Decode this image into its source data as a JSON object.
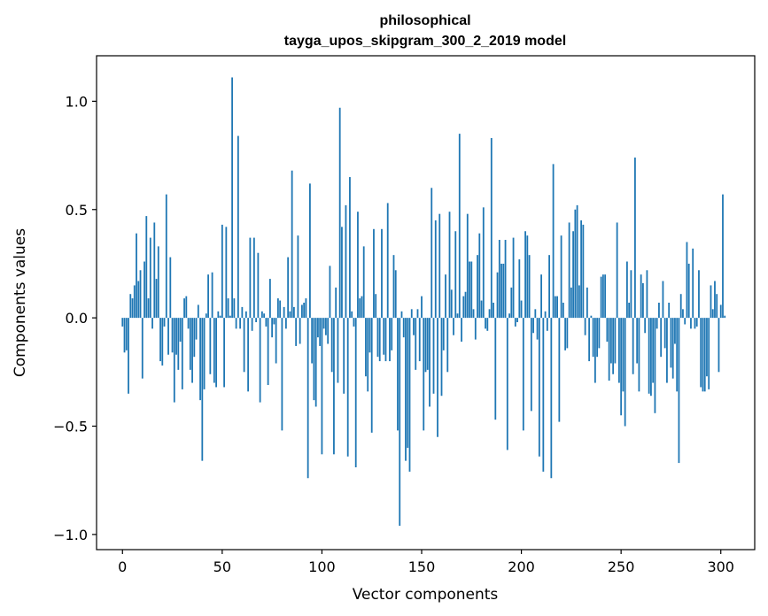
{
  "chart_data": {
    "type": "bar",
    "title_line1": "philosophical",
    "title_line2": "tayga_upos_skipgram_300_2_2019 model",
    "xlabel": "Vector components",
    "ylabel": "Components values",
    "xlim": [
      -13,
      317
    ],
    "ylim": [
      -1.07,
      1.21
    ],
    "xticks": [
      0,
      50,
      100,
      150,
      200,
      250,
      300
    ],
    "yticks": [
      -1.0,
      -0.5,
      0.0,
      0.5,
      1.0
    ],
    "ytick_labels": [
      "−1.0",
      "−0.5",
      "0.0",
      "0.5",
      "1.0"
    ],
    "bar_color": "#1f77b4",
    "values": [
      -0.04,
      -0.16,
      -0.15,
      -0.35,
      0.11,
      0.09,
      0.15,
      0.39,
      0.17,
      0.22,
      -0.28,
      0.26,
      0.47,
      0.09,
      0.37,
      -0.05,
      0.44,
      0.18,
      0.33,
      -0.2,
      -0.22,
      -0.04,
      0.57,
      -0.17,
      0.28,
      -0.16,
      -0.39,
      -0.17,
      -0.24,
      -0.11,
      -0.33,
      0.09,
      0.1,
      -0.05,
      -0.24,
      -0.3,
      -0.18,
      -0.1,
      0.06,
      -0.38,
      -0.66,
      -0.33,
      0.02,
      0.2,
      -0.26,
      0.21,
      -0.3,
      -0.32,
      0.03,
      0.01,
      0.43,
      -0.32,
      0.42,
      0.09,
      0.01,
      1.11,
      0.09,
      -0.05,
      0.84,
      -0.05,
      0.05,
      -0.25,
      0.03,
      -0.34,
      0.37,
      -0.06,
      0.37,
      -0.02,
      0.3,
      -0.39,
      0.03,
      0.02,
      -0.04,
      -0.31,
      0.18,
      -0.09,
      -0.03,
      -0.21,
      0.09,
      0.08,
      -0.52,
      0.05,
      -0.05,
      0.28,
      0.03,
      0.68,
      0.05,
      -0.13,
      0.38,
      -0.12,
      0.06,
      0.07,
      0.09,
      -0.74,
      0.62,
      -0.21,
      -0.38,
      -0.41,
      -0.09,
      -0.13,
      -0.63,
      -0.05,
      -0.08,
      -0.12,
      0.24,
      -0.25,
      -0.63,
      0.14,
      -0.3,
      0.97,
      0.42,
      -0.35,
      0.52,
      -0.64,
      0.65,
      0.03,
      -0.04,
      -0.69,
      0.49,
      0.09,
      0.1,
      0.33,
      -0.27,
      -0.34,
      -0.16,
      -0.53,
      0.41,
      0.11,
      -0.18,
      -0.2,
      0.41,
      -0.17,
      -0.2,
      0.53,
      -0.2,
      -0.15,
      0.29,
      0.22,
      -0.52,
      -0.96,
      0.03,
      -0.09,
      -0.66,
      -0.6,
      -0.71,
      0.04,
      -0.08,
      -0.24,
      0.04,
      -0.2,
      0.1,
      -0.52,
      -0.25,
      -0.24,
      -0.41,
      0.6,
      -0.35,
      0.45,
      -0.55,
      0.48,
      -0.36,
      -0.15,
      0.2,
      -0.25,
      0.49,
      0.13,
      -0.08,
      0.4,
      0.02,
      0.85,
      -0.11,
      0.1,
      0.12,
      0.48,
      0.26,
      0.26,
      0.04,
      -0.1,
      0.29,
      0.39,
      0.08,
      0.51,
      -0.05,
      -0.06,
      0.04,
      0.83,
      0.07,
      -0.47,
      0.21,
      0.36,
      0.25,
      0.25,
      0.36,
      -0.61,
      0.02,
      0.14,
      0.37,
      -0.04,
      -0.02,
      0.27,
      0.08,
      -0.52,
      0.4,
      0.38,
      0.29,
      -0.43,
      -0.07,
      0.04,
      -0.1,
      -0.64,
      0.2,
      -0.71,
      0.03,
      -0.06,
      0.29,
      -0.74,
      0.71,
      0.1,
      0.1,
      -0.48,
      0.38,
      0.07,
      -0.15,
      -0.14,
      0.44,
      0.14,
      0.4,
      0.5,
      0.52,
      0.15,
      0.45,
      0.43,
      -0.08,
      0.14,
      -0.2,
      0.01,
      -0.18,
      -0.3,
      -0.18,
      -0.14,
      0.19,
      0.2,
      0.2,
      -0.11,
      -0.29,
      -0.21,
      -0.26,
      -0.21,
      0.44,
      -0.3,
      -0.45,
      -0.34,
      -0.5,
      0.26,
      0.07,
      0.22,
      -0.26,
      0.74,
      -0.21,
      -0.34,
      0.2,
      0.16,
      -0.07,
      0.22,
      -0.35,
      -0.36,
      -0.3,
      -0.44,
      -0.05,
      0.07,
      -0.18,
      0.17,
      -0.14,
      -0.3,
      0.07,
      -0.23,
      -0.28,
      -0.12,
      -0.34,
      -0.67,
      0.11,
      0.04,
      -0.03,
      0.35,
      0.25,
      -0.05,
      0.32,
      -0.05,
      -0.04,
      0.22,
      -0.32,
      -0.34,
      -0.34,
      -0.27,
      -0.33,
      0.15,
      0.04,
      0.17,
      0.11,
      -0.25,
      0.06,
      0.57,
      0.01
    ]
  }
}
